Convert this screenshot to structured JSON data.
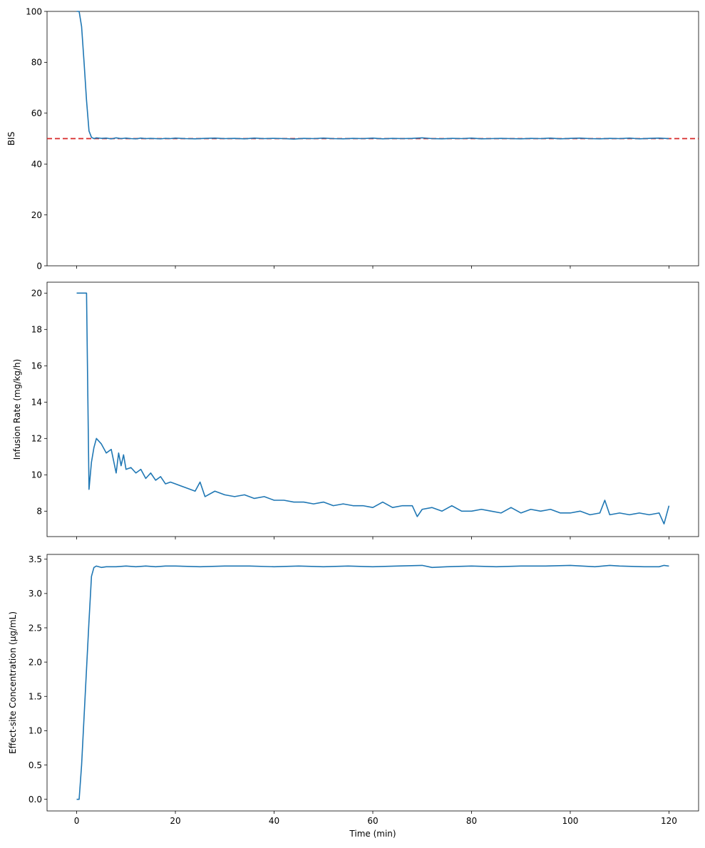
{
  "colors": {
    "series": "#1f77b4",
    "reference": "#d62728"
  },
  "chart_data": [
    {
      "type": "line",
      "xlabel": "",
      "ylabel": "BIS",
      "xlim": [
        -6,
        126
      ],
      "ylim": [
        0,
        100
      ],
      "yticks": [
        0,
        20,
        40,
        60,
        80,
        100
      ],
      "xticks": [
        0,
        20,
        40,
        60,
        80,
        100,
        120
      ],
      "show_xtick_labels": false,
      "reference_line": {
        "y": 50,
        "style": "dashed"
      },
      "series": [
        {
          "x": [
            0,
            0.5,
            1,
            1.5,
            2,
            2.5,
            3,
            3.5,
            4,
            5,
            6,
            7,
            8,
            9,
            10,
            11,
            12,
            13,
            14,
            15,
            16,
            17,
            18,
            19,
            20,
            22,
            24,
            26,
            28,
            30,
            32,
            34,
            36,
            38,
            40,
            42,
            44,
            46,
            48,
            50,
            52,
            54,
            56,
            58,
            60,
            62,
            64,
            66,
            68,
            70,
            72,
            74,
            76,
            78,
            80,
            82,
            84,
            86,
            88,
            90,
            92,
            94,
            96,
            98,
            100,
            102,
            104,
            106,
            108,
            110,
            112,
            114,
            116,
            118,
            120
          ],
          "values": [
            100,
            100,
            94,
            80,
            65,
            53,
            50.5,
            50,
            50.3,
            50.1,
            50.2,
            49.9,
            50.3,
            50,
            50.2,
            50,
            49.9,
            50.2,
            50,
            50.1,
            50,
            49.9,
            50.1,
            50,
            50.2,
            50,
            49.9,
            50.1,
            50.2,
            50,
            50.1,
            49.9,
            50.2,
            50,
            50.1,
            50,
            49.8,
            50.1,
            50,
            50.2,
            50,
            49.9,
            50.1,
            50,
            50.2,
            49.9,
            50.1,
            50,
            50.1,
            50.3,
            50,
            49.9,
            50.1,
            50,
            50.2,
            49.9,
            50,
            50.1,
            50,
            49.9,
            50.1,
            50,
            50.2,
            49.9,
            50.1,
            50.2,
            50,
            49.9,
            50.1,
            50,
            50.2,
            49.9,
            50.1,
            50.2,
            50
          ]
        }
      ]
    },
    {
      "type": "line",
      "xlabel": "",
      "ylabel": "Infusion Rate (mg/kg/h)",
      "xlim": [
        -6,
        126
      ],
      "ylim": [
        6.6,
        20.6
      ],
      "yticks": [
        8,
        10,
        12,
        14,
        16,
        18,
        20
      ],
      "xticks": [
        0,
        20,
        40,
        60,
        80,
        100,
        120
      ],
      "show_xtick_labels": false,
      "series": [
        {
          "x": [
            0,
            1,
            2,
            2.5,
            3,
            3.5,
            4,
            5,
            6,
            7,
            8,
            8.5,
            9,
            9.5,
            10,
            11,
            12,
            13,
            14,
            15,
            16,
            17,
            18,
            19,
            20,
            22,
            24,
            25,
            26,
            28,
            30,
            32,
            34,
            36,
            38,
            40,
            42,
            44,
            46,
            48,
            50,
            52,
            54,
            56,
            58,
            60,
            62,
            64,
            66,
            68,
            69,
            70,
            72,
            74,
            76,
            78,
            80,
            82,
            84,
            86,
            88,
            90,
            92,
            94,
            96,
            98,
            100,
            102,
            104,
            106,
            107,
            108,
            110,
            112,
            114,
            116,
            118,
            119,
            120
          ],
          "values": [
            20,
            20,
            20,
            9.2,
            10.7,
            11.5,
            12,
            11.7,
            11.2,
            11.4,
            10.1,
            11.2,
            10.5,
            11.1,
            10.3,
            10.4,
            10.1,
            10.3,
            9.8,
            10.1,
            9.7,
            9.9,
            9.5,
            9.6,
            9.5,
            9.3,
            9.1,
            9.6,
            8.8,
            9.1,
            8.9,
            8.8,
            8.9,
            8.7,
            8.8,
            8.6,
            8.6,
            8.5,
            8.5,
            8.4,
            8.5,
            8.3,
            8.4,
            8.3,
            8.3,
            8.2,
            8.5,
            8.2,
            8.3,
            8.3,
            7.7,
            8.1,
            8.2,
            8.0,
            8.3,
            8.0,
            8.0,
            8.1,
            8.0,
            7.9,
            8.2,
            7.9,
            8.1,
            8.0,
            8.1,
            7.9,
            7.9,
            8.0,
            7.8,
            7.9,
            8.6,
            7.8,
            7.9,
            7.8,
            7.9,
            7.8,
            7.9,
            7.3,
            8.3
          ]
        }
      ]
    },
    {
      "type": "line",
      "xlabel": "Time (min)",
      "ylabel": "Effect-site Concentration (μg/mL)",
      "xlim": [
        -6,
        126
      ],
      "ylim": [
        -0.17,
        3.57
      ],
      "yticks": [
        0.0,
        0.5,
        1.0,
        1.5,
        2.0,
        2.5,
        3.0,
        3.5
      ],
      "ytick_labels": [
        "0.0",
        "0.5",
        "1.0",
        "1.5",
        "2.0",
        "2.5",
        "3.0",
        "3.5"
      ],
      "xticks": [
        0,
        20,
        40,
        60,
        80,
        100,
        120
      ],
      "xtick_labels": [
        "0",
        "20",
        "40",
        "60",
        "80",
        "100",
        "120"
      ],
      "show_xtick_labels": true,
      "series": [
        {
          "x": [
            0,
            0.5,
            1,
            1.5,
            2,
            2.5,
            3,
            3.5,
            4,
            5,
            6,
            8,
            10,
            12,
            14,
            16,
            18,
            20,
            25,
            30,
            35,
            40,
            45,
            50,
            55,
            60,
            65,
            70,
            72,
            75,
            80,
            85,
            90,
            95,
            100,
            105,
            108,
            110,
            115,
            118,
            119,
            120
          ],
          "values": [
            0,
            0,
            0.5,
            1.2,
            1.9,
            2.6,
            3.25,
            3.38,
            3.4,
            3.38,
            3.39,
            3.39,
            3.4,
            3.39,
            3.4,
            3.39,
            3.4,
            3.4,
            3.39,
            3.4,
            3.4,
            3.39,
            3.4,
            3.39,
            3.4,
            3.39,
            3.4,
            3.41,
            3.38,
            3.39,
            3.4,
            3.39,
            3.4,
            3.4,
            3.41,
            3.39,
            3.41,
            3.4,
            3.39,
            3.39,
            3.41,
            3.4
          ]
        }
      ]
    }
  ]
}
